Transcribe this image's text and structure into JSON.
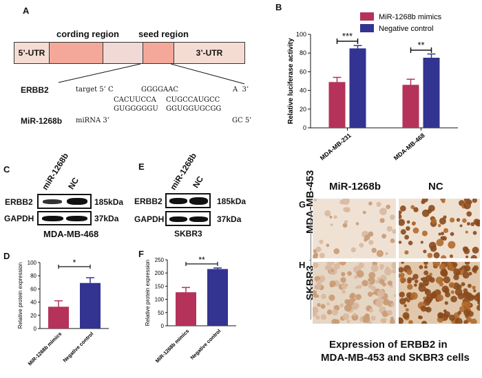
{
  "panels": {
    "a": "A",
    "b": "B",
    "c": "C",
    "d": "D",
    "e": "E",
    "f": "F",
    "g": "G",
    "h": "H"
  },
  "panel_a": {
    "coding_label": "cording region",
    "seed_label": "seed region",
    "utr5": "5’-UTR",
    "utr3": "3’-UTR",
    "erbb2_name": "ERBB2",
    "target_line": "target 5’ C          GGGGAAC             A  3’",
    "target_pairs": "CACUUCCA           CUGCCAUGCC",
    "mirna_pairs": "GUGGGGGU           GGUGGUGCGG",
    "mir_name": "MiR-1268b",
    "mirna_line": "miRNA   3’",
    "mirna_end": "GC 5’",
    "colors": {
      "utr": "#f5dcd3",
      "coding": "#f4a89a",
      "mid": "#f1d9d5",
      "seed": "#f4a89a"
    }
  },
  "chart_data": [
    {
      "id": "B",
      "type": "bar",
      "categories": [
        "MDA-MB-231",
        "MDA-MB-468"
      ],
      "series": [
        {
          "name": "MiR-1268b mimics",
          "values": [
            49,
            46
          ],
          "errors": [
            5,
            6
          ],
          "color": "#b5325a"
        },
        {
          "name": "Negative control",
          "values": [
            85,
            75
          ],
          "errors": [
            3,
            4
          ],
          "color": "#333392"
        }
      ],
      "ylabel": "Relative luciferase activity",
      "ylim": [
        0,
        100
      ],
      "yticks": [
        0,
        20,
        40,
        60,
        80,
        100
      ],
      "significance": [
        "***",
        "**"
      ],
      "legend": "top-right"
    },
    {
      "id": "D",
      "type": "bar",
      "categories": [
        "MiR-1268b mimics",
        "Negative control"
      ],
      "values": [
        33,
        69
      ],
      "errors": [
        9,
        8
      ],
      "colors": [
        "#b5325a",
        "#333392"
      ],
      "ylabel": "Relative protein expression",
      "ylim": [
        0,
        100
      ],
      "yticks": [
        0,
        20,
        40,
        60,
        80,
        100
      ],
      "significance": "*"
    },
    {
      "id": "F",
      "type": "bar",
      "categories": [
        "MiR-1268b mimics",
        "Negative control"
      ],
      "values": [
        127,
        215
      ],
      "errors": [
        18,
        4
      ],
      "colors": [
        "#b5325a",
        "#333392"
      ],
      "ylabel": "Relative protein expression",
      "ylim": [
        0,
        250
      ],
      "yticks": [
        0,
        50,
        100,
        150,
        200,
        250
      ],
      "significance": "**"
    }
  ],
  "panel_c": {
    "lane1": "miR-1268b",
    "lane2": "NC",
    "row1": "ERBB2",
    "row2": "GAPDH",
    "size1": "185kDa",
    "size2": "37kDa",
    "cell": "MDA-MB-468"
  },
  "panel_e": {
    "lane1": "miR-1268b",
    "lane2": "NC",
    "row1": "ERBB2",
    "row2": "GAPDH",
    "size1": "185kDa",
    "size2": "37kDa",
    "cell": "SKBR3"
  },
  "panel_gh": {
    "col1": "MiR-1268b",
    "col2": "NC",
    "row1": "MDA-MB-453",
    "row2": "SKBR3",
    "caption_line1": "Expression of ERBB2 in",
    "caption_line2": "MDA-MB-453 and SKBR3 cells"
  }
}
